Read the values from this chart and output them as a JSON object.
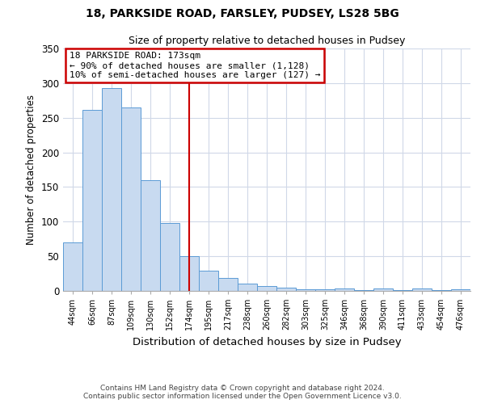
{
  "title": "18, PARKSIDE ROAD, FARSLEY, PUDSEY, LS28 5BG",
  "subtitle": "Size of property relative to detached houses in Pudsey",
  "xlabel": "Distribution of detached houses by size in Pudsey",
  "ylabel": "Number of detached properties",
  "bar_color": "#c8daf0",
  "bar_edge_color": "#5b9bd5",
  "background_color": "#ffffff",
  "grid_color": "#d0d8e8",
  "bins": [
    "44sqm",
    "66sqm",
    "87sqm",
    "109sqm",
    "130sqm",
    "152sqm",
    "174sqm",
    "195sqm",
    "217sqm",
    "238sqm",
    "260sqm",
    "282sqm",
    "303sqm",
    "325sqm",
    "346sqm",
    "368sqm",
    "390sqm",
    "411sqm",
    "433sqm",
    "454sqm",
    "476sqm"
  ],
  "values": [
    70,
    261,
    293,
    265,
    160,
    98,
    50,
    29,
    19,
    10,
    7,
    5,
    2,
    2,
    3,
    1,
    3,
    1,
    3,
    1,
    2
  ],
  "property_line_x": 6,
  "property_line_label": "18 PARKSIDE ROAD: 173sqm",
  "annotation_line1": "← 90% of detached houses are smaller (1,128)",
  "annotation_line2": "10% of semi-detached houses are larger (127) →",
  "annotation_box_color": "#ffffff",
  "annotation_box_edge_color": "#cc0000",
  "property_line_color": "#cc0000",
  "ylim": [
    0,
    350
  ],
  "yticks": [
    0,
    50,
    100,
    150,
    200,
    250,
    300,
    350
  ],
  "footnote1": "Contains HM Land Registry data © Crown copyright and database right 2024.",
  "footnote2": "Contains public sector information licensed under the Open Government Licence v3.0."
}
